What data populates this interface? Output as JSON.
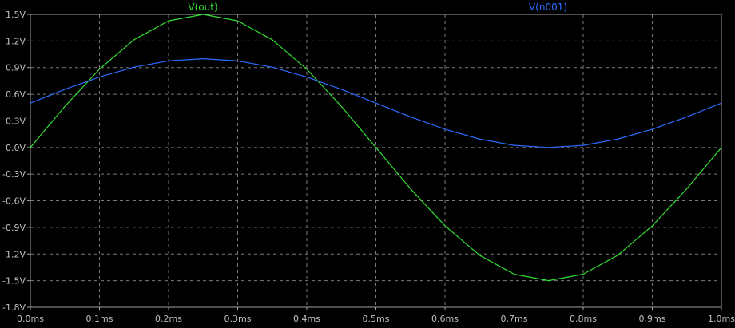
{
  "chart_data": {
    "type": "line",
    "title": "",
    "xlabel": "",
    "ylabel": "",
    "xlim": [
      0.0,
      1.0
    ],
    "ylim": [
      -1.8,
      1.5
    ],
    "x_unit": "ms",
    "y_unit": "V",
    "x_ticks": [
      "0.0ms",
      "0.1ms",
      "0.2ms",
      "0.3ms",
      "0.4ms",
      "0.5ms",
      "0.6ms",
      "0.7ms",
      "0.8ms",
      "0.9ms",
      "1.0ms"
    ],
    "y_ticks": [
      "1.5V",
      "1.2V",
      "0.9V",
      "0.6V",
      "0.3V",
      "0.0V",
      "-0.3V",
      "-0.6V",
      "-0.9V",
      "-1.2V",
      "-1.5V",
      "-1.8V"
    ],
    "grid": true,
    "legend_position": "top",
    "background": "#000000",
    "series": [
      {
        "name": "V(out)",
        "color": "#33dd33",
        "x": [
          0.0,
          0.05,
          0.1,
          0.15,
          0.2,
          0.25,
          0.3,
          0.35,
          0.4,
          0.45,
          0.5,
          0.55,
          0.6,
          0.65,
          0.7,
          0.75,
          0.8,
          0.85,
          0.9,
          0.95,
          1.0
        ],
        "y": [
          0.0,
          0.464,
          0.882,
          1.214,
          1.427,
          1.5,
          1.427,
          1.214,
          0.882,
          0.464,
          0.0,
          -0.464,
          -0.882,
          -1.214,
          -1.427,
          -1.5,
          -1.427,
          -1.214,
          -0.882,
          -0.464,
          0.0
        ]
      },
      {
        "name": "V(n001)",
        "color": "#2b6cff",
        "x": [
          0.0,
          0.05,
          0.1,
          0.15,
          0.2,
          0.25,
          0.3,
          0.35,
          0.4,
          0.45,
          0.5,
          0.55,
          0.6,
          0.65,
          0.7,
          0.75,
          0.8,
          0.85,
          0.9,
          0.95,
          1.0
        ],
        "y": [
          0.5,
          0.655,
          0.794,
          0.905,
          0.976,
          1.0,
          0.976,
          0.905,
          0.794,
          0.655,
          0.5,
          0.345,
          0.206,
          0.095,
          0.024,
          0.0,
          0.024,
          0.095,
          0.206,
          0.345,
          0.5
        ]
      }
    ]
  }
}
